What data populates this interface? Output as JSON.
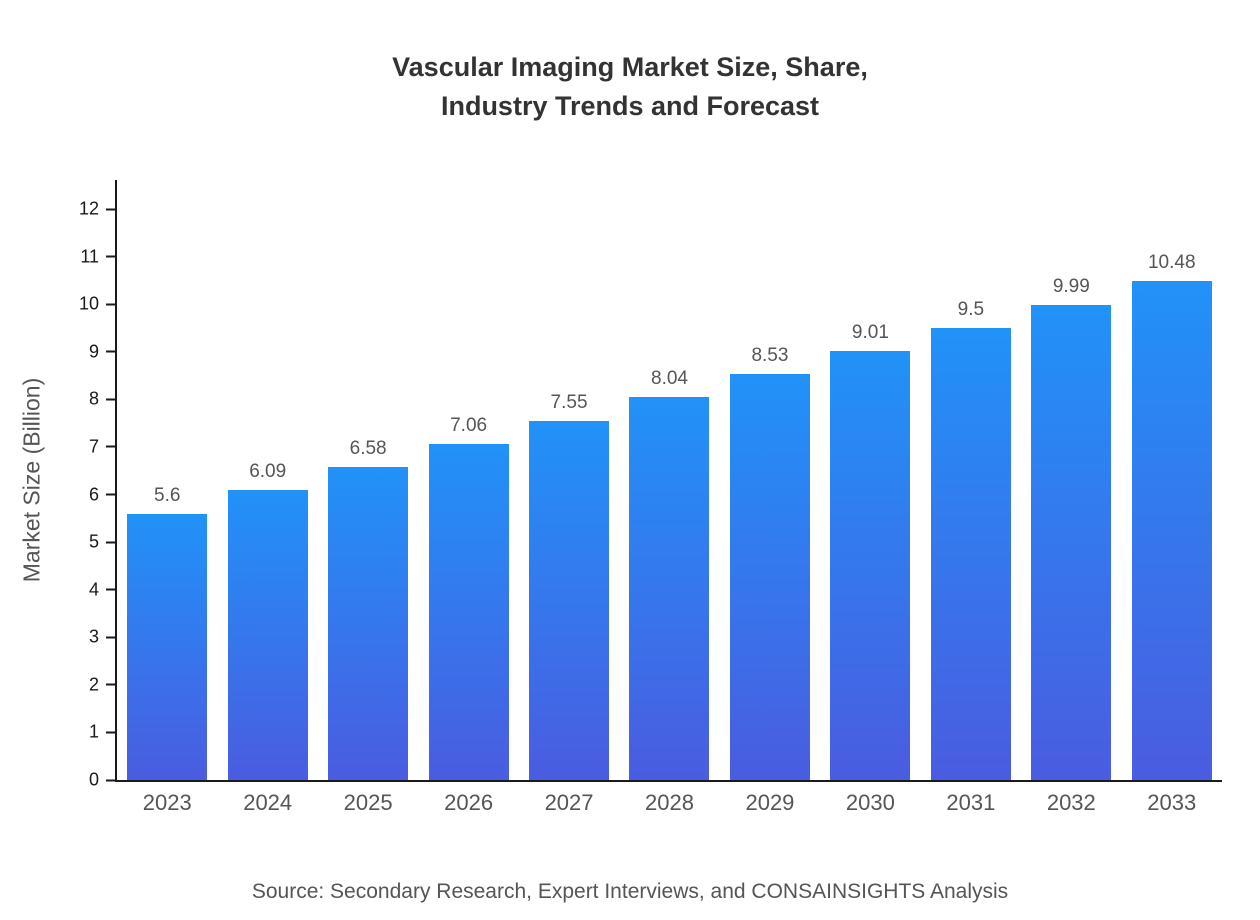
{
  "title": "Vascular Imaging Market Size, Share,\nIndustry Trends and Forecast",
  "source": "Source: Secondary Research, Expert Interviews, and CONSAINSIGHTS Analysis",
  "chart_data": {
    "type": "bar",
    "title": "Vascular Imaging Market Size, Share,\nIndustry Trends and Forecast",
    "categories": [
      "2023",
      "2024",
      "2025",
      "2026",
      "2027",
      "2028",
      "2029",
      "2030",
      "2031",
      "2032",
      "2033"
    ],
    "values": [
      5.6,
      6.09,
      6.58,
      7.06,
      7.55,
      8.04,
      8.53,
      9.01,
      9.5,
      9.99,
      10.48
    ],
    "xlabel": "",
    "ylabel": "Market Size (Billion)",
    "ylim": [
      0,
      12
    ],
    "yticks": [
      0,
      1,
      2,
      3,
      4,
      5,
      6,
      7,
      8,
      9,
      10,
      11,
      12
    ],
    "grid": false,
    "bar_gradient_top": "#2192f8",
    "bar_gradient_bottom": "#4a5ce0",
    "axis_color": "#1a1a1a",
    "value_label_color": "#555555"
  }
}
